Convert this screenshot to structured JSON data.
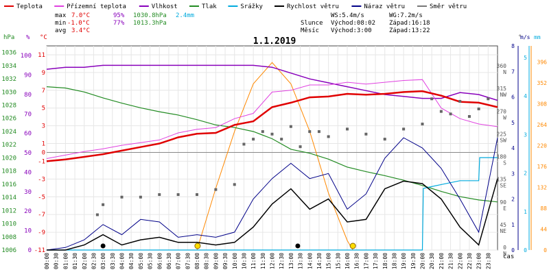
{
  "legend": [
    {
      "label": "Teplota",
      "color": "#e00000"
    },
    {
      "label": "Přízemní teplota",
      "color": "#e040e0"
    },
    {
      "label": "Vlhkost",
      "color": "#8800bb"
    },
    {
      "label": "Tlak",
      "color": "#228b22"
    },
    {
      "label": "Srážky",
      "color": "#00aadd"
    },
    {
      "label": "Rychlost větru",
      "color": "#000000"
    },
    {
      "label": "Náraz větru",
      "color": "#000088"
    },
    {
      "label": "Směr větru",
      "color": "#777777"
    }
  ],
  "stats": {
    "max": {
      "label": "max",
      "temp": "7.0°C",
      "hum": "95%",
      "press": "1030.8hPa",
      "rain": "2.4mm"
    },
    "min": {
      "label": "min",
      "temp": "-1.0°C",
      "hum": "77%",
      "press": "1013.3hPa"
    },
    "avg": {
      "label": "avg",
      "temp": "3.4°C"
    }
  },
  "wind_info": {
    "ws": "WS:5.4m/s",
    "wg": "WG:7.2m/s"
  },
  "sun": {
    "label": "Slunce",
    "rise": "Východ:08:02",
    "set": "Západ:16:18"
  },
  "moon": {
    "label": "Měsíc",
    "rise": "Východ:3:00",
    "set": "Západ:13:22"
  },
  "axis_units": {
    "hpa": "hPa",
    "pct": "%",
    "degc": "°C",
    "deg": "°",
    "ms": "m/s",
    "mm": "mm",
    "time": "čas"
  },
  "colors": {
    "temp": "#e00000",
    "ground": "#e040e0",
    "hum": "#8800bb",
    "press": "#228b22",
    "rain": "#00aadd",
    "wind": "#000000",
    "gust": "#000088",
    "dir": "#666666",
    "sun": "#ff8800"
  },
  "chart_data": {
    "type": "line",
    "title": "1.1.2019",
    "xlabel": "čas",
    "x_ticks": [
      "00:00",
      "00:30",
      "01:00",
      "01:30",
      "02:00",
      "02:30",
      "03:00",
      "03:30",
      "04:00",
      "04:30",
      "05:00",
      "05:30",
      "06:00",
      "06:30",
      "07:00",
      "07:30",
      "08:00",
      "08:30",
      "09:00",
      "09:30",
      "10:00",
      "10:30",
      "11:00",
      "11:30",
      "12:00",
      "12:30",
      "13:00",
      "13:30",
      "14:00",
      "14:30",
      "15:00",
      "15:30",
      "16:00",
      "16:30",
      "17:00",
      "17:30",
      "18:00",
      "18:30",
      "19:00",
      "19:30",
      "20:00",
      "20:30",
      "21:00",
      "21:30",
      "22:00",
      "22:30",
      "23:00",
      "23:30"
    ],
    "axes": {
      "pressure_hpa": {
        "range": [
          1006,
          1037
        ],
        "ticks": [
          "1036",
          "1034",
          "1032",
          "1030",
          "1028",
          "1026",
          "1024",
          "1022",
          "1020",
          "1018",
          "1016",
          "1014",
          "1012",
          "1010",
          "1008",
          "1006"
        ]
      },
      "humidity_pct": {
        "range": [
          0,
          105
        ],
        "ticks": [
          "100",
          "90",
          "80",
          "70",
          "60",
          "50",
          "40",
          "30",
          "20",
          "10",
          "0"
        ]
      },
      "temperature_c": {
        "range": [
          -11,
          12
        ],
        "ticks": [
          "11",
          "9",
          "7",
          "5",
          "3",
          "1",
          "0",
          "-1",
          "-3",
          "-5",
          "-7",
          "-9",
          "-11"
        ]
      },
      "direction_deg": {
        "range": [
          0,
          405
        ],
        "ticks": [
          "360",
          "315",
          "270",
          "225",
          "180",
          "135",
          "90",
          "45",
          "0"
        ],
        "labels": [
          "N",
          "NW",
          "W",
          "SW",
          "S",
          "SE",
          "E",
          "NE",
          "N"
        ]
      },
      "wind_ms": {
        "range": [
          0,
          8
        ],
        "ticks": [
          "8",
          "7",
          "6",
          "5",
          "4",
          "3",
          "2",
          "1",
          "0"
        ]
      },
      "rain_mm": {
        "range": [
          0,
          5.3
        ],
        "ticks": [
          "5",
          "4",
          "3",
          "2",
          "1",
          "0"
        ]
      },
      "solar": {
        "range": [
          0,
          430
        ],
        "ticks": [
          "396",
          "352",
          "308",
          "264",
          "220",
          "176",
          "132",
          "88",
          "44",
          "0"
        ]
      }
    },
    "series": [
      {
        "name": "Teplota",
        "unit": "°C",
        "x": [
          0,
          1,
          2,
          3,
          4,
          5,
          6,
          7,
          8,
          9,
          10,
          11,
          12,
          13,
          14,
          15,
          16,
          17,
          18,
          19,
          20,
          21,
          22,
          23,
          24
        ],
        "values": [
          -1.0,
          -0.8,
          -0.5,
          -0.2,
          0.2,
          0.6,
          1.0,
          1.7,
          2.1,
          2.2,
          3.1,
          3.5,
          5.1,
          5.6,
          6.2,
          6.3,
          6.6,
          6.5,
          6.6,
          6.8,
          6.9,
          6.4,
          5.7,
          5.6,
          5.1
        ]
      },
      {
        "name": "Přízemní teplota",
        "unit": "°C",
        "x": [
          0,
          1,
          2,
          3,
          4,
          5,
          6,
          7,
          8,
          9,
          10,
          11,
          12,
          13,
          14,
          15,
          16,
          17,
          18,
          19,
          20,
          21,
          22,
          23,
          24
        ],
        "values": [
          -0.7,
          -0.3,
          0.1,
          0.4,
          0.8,
          1.1,
          1.4,
          2.2,
          2.6,
          2.8,
          3.8,
          4.4,
          6.8,
          7.0,
          7.6,
          7.6,
          7.9,
          7.7,
          7.9,
          8.1,
          8.2,
          5.0,
          3.8,
          3.2,
          2.9
        ]
      },
      {
        "name": "Vlhkost",
        "unit": "%",
        "x": [
          0,
          1,
          2,
          3,
          4,
          5,
          6,
          7,
          8,
          9,
          10,
          11,
          12,
          13,
          14,
          15,
          16,
          17,
          18,
          19,
          20,
          21,
          22,
          23,
          24
        ],
        "values": [
          93,
          94,
          94,
          95,
          95,
          95,
          95,
          95,
          95,
          95,
          95,
          95,
          94,
          91,
          88,
          86,
          84,
          82,
          80,
          79,
          78,
          78,
          81,
          80,
          77
        ]
      },
      {
        "name": "Tlak",
        "unit": "hPa",
        "x": [
          0,
          1,
          2,
          3,
          4,
          5,
          6,
          7,
          8,
          9,
          10,
          11,
          12,
          13,
          14,
          15,
          16,
          17,
          18,
          19,
          20,
          21,
          22,
          23,
          24
        ],
        "values": [
          1030.8,
          1030.6,
          1030.0,
          1029.1,
          1028.3,
          1027.6,
          1027.0,
          1026.5,
          1025.8,
          1025.0,
          1024.6,
          1024.0,
          1022.9,
          1021.3,
          1020.7,
          1019.8,
          1018.6,
          1017.9,
          1017.3,
          1016.6,
          1015.8,
          1014.9,
          1014.1,
          1013.6,
          1013.3
        ]
      },
      {
        "name": "Srážky",
        "unit": "mm",
        "x": [
          0,
          20.0,
          20.05,
          21.0,
          22.0,
          23.0,
          23.05,
          24
        ],
        "values": [
          0,
          0,
          1.6,
          1.7,
          1.8,
          1.8,
          2.4,
          2.4
        ]
      },
      {
        "name": "Rychlost větru",
        "unit": "m/s",
        "x": [
          0,
          1,
          2,
          3,
          4,
          5,
          6,
          7,
          8,
          9,
          10,
          11,
          12,
          13,
          14,
          15,
          16,
          17,
          18,
          19,
          20,
          21,
          22,
          23,
          24
        ],
        "values": [
          0,
          0,
          0.2,
          0.6,
          0.2,
          0.4,
          0.5,
          0.3,
          0.3,
          0.2,
          0.3,
          0.9,
          1.8,
          2.4,
          1.6,
          2.0,
          1.1,
          1.2,
          2.4,
          2.7,
          2.6,
          2.0,
          0.9,
          0.2,
          2.8
        ]
      },
      {
        "name": "Náraz větru",
        "unit": "m/s",
        "x": [
          0,
          1,
          2,
          3,
          4,
          5,
          6,
          7,
          8,
          9,
          10,
          11,
          12,
          13,
          14,
          15,
          16,
          17,
          18,
          19,
          20,
          21,
          22,
          23,
          24
        ],
        "values": [
          0,
          0.1,
          0.4,
          1.0,
          0.6,
          1.2,
          1.1,
          0.5,
          0.6,
          0.5,
          0.7,
          2.0,
          2.8,
          3.4,
          2.8,
          3.0,
          1.6,
          2.2,
          3.6,
          4.4,
          4.0,
          3.2,
          2.0,
          0.7,
          4.4
        ]
      },
      {
        "name": "Směr větru",
        "unit": "°",
        "x": [
          2.7,
          3.0,
          4.0,
          5.0,
          6.0,
          7.0,
          8.0,
          9.0,
          10.0,
          10.5,
          11.0,
          11.5,
          12.0,
          12.5,
          13.0,
          13.5,
          14.0,
          14.5,
          15.0,
          16.0,
          17.0,
          18.0,
          19.0,
          20.0,
          20.5,
          21.0,
          21.5,
          22.0,
          22.5,
          23.0,
          23.5
        ],
        "values": [
          70,
          90,
          105,
          105,
          110,
          110,
          110,
          120,
          130,
          210,
          220,
          235,
          230,
          220,
          245,
          205,
          235,
          235,
          225,
          240,
          230,
          220,
          240,
          250,
          300,
          275,
          270,
          295,
          265,
          280,
          300
        ]
      },
      {
        "name": "Sluneční svit",
        "unit": "W/m²",
        "x": [
          8.0,
          9.0,
          10.0,
          11.0,
          12.0,
          13.0,
          14.0,
          15.0,
          16.0,
          16.3
        ],
        "values": [
          0,
          130,
          250,
          350,
          395,
          350,
          250,
          120,
          20,
          0
        ]
      }
    ],
    "markers": {
      "sunrise": "08:02",
      "sunset": "16:18",
      "moonrise": "3:00",
      "moonset": "13:22"
    },
    "grid": true
  }
}
